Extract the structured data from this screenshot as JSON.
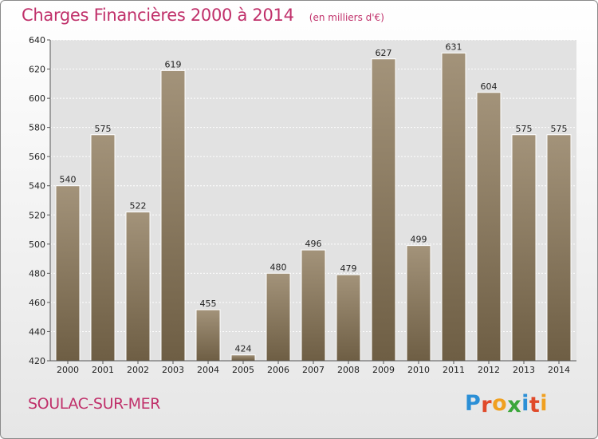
{
  "header": {
    "title": "Charges Financières 2000 à 2014",
    "subtitle": "(en milliers d'€)"
  },
  "footer": {
    "commune": "SOULAC-SUR-MER",
    "brand_letters": [
      "P",
      "r",
      "o",
      "x",
      "i",
      "t",
      "i"
    ],
    "brand_colors": [
      "#2b8fd6",
      "#e04a2a",
      "#f0a020",
      "#3aa63a",
      "#2b8fd6",
      "#e04a2a",
      "#f0a020"
    ]
  },
  "chart_data": {
    "type": "bar",
    "title": "Charges Financières 2000 à 2014",
    "subtitle": "(en milliers d'€)",
    "categories": [
      "2000",
      "2001",
      "2002",
      "2003",
      "2004",
      "2005",
      "2006",
      "2007",
      "2008",
      "2009",
      "2010",
      "2011",
      "2012",
      "2013",
      "2014"
    ],
    "values": [
      540,
      575,
      522,
      619,
      455,
      424,
      480,
      496,
      479,
      627,
      499,
      631,
      604,
      575,
      575
    ],
    "ylim": [
      420,
      640
    ],
    "yticks": [
      420,
      440,
      460,
      480,
      500,
      520,
      540,
      560,
      580,
      600,
      620,
      640
    ],
    "grid": true,
    "bar_color_top": "#a3937a",
    "bar_color_bottom": "#6e5e44"
  }
}
